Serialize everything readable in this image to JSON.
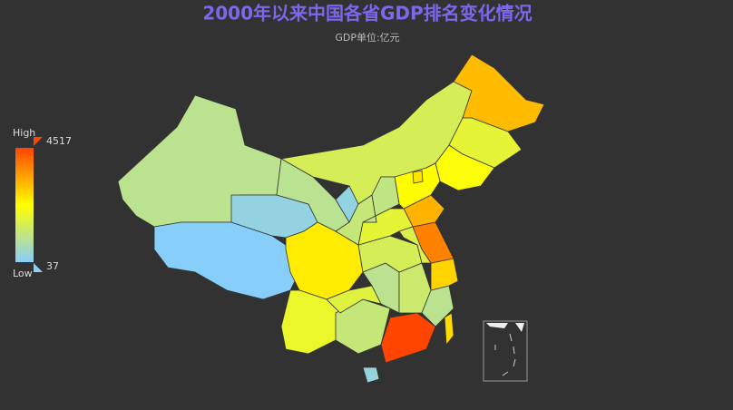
{
  "title": "2000年以来中国各省GDP排名变化情况",
  "subtitle": "GDP单位:亿元",
  "visual_map": {
    "high_label": "High",
    "low_label": "Low",
    "min": 37,
    "max": 4517,
    "colors": [
      "#87cefa",
      "#ffff00",
      "#ff4500"
    ]
  },
  "regions": [
    1000,
    37,
    260,
    980,
    1500,
    3100,
    1800,
    2200,
    2500,
    1900,
    1200,
    1700,
    4517,
    300,
    1000,
    1300,
    1000,
    1500,
    2800,
    3800,
    3200,
    1800,
    1200,
    2300,
    1100,
    1600,
    2600,
    250,
    2700
  ]
}
